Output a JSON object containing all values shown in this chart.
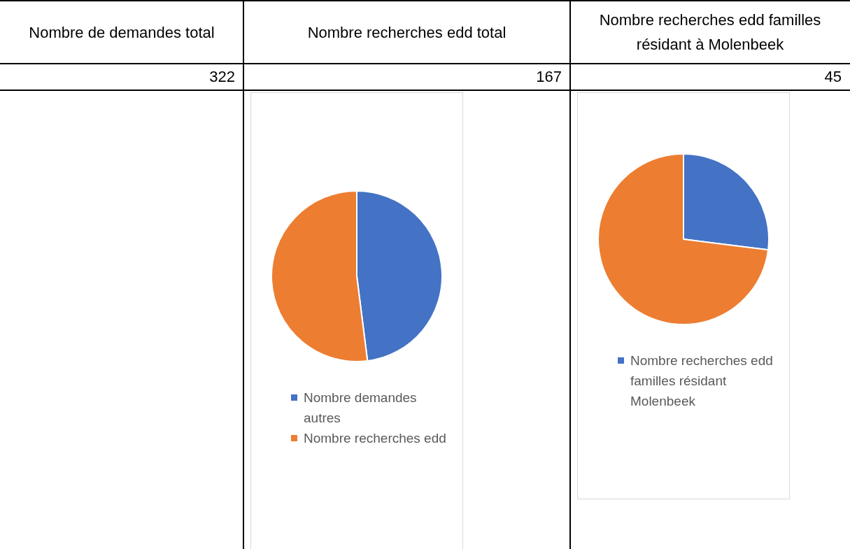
{
  "chart_data": [
    {
      "type": "other",
      "title": "Nombre de demandes total",
      "annotations": [
        "322"
      ]
    },
    {
      "type": "pie",
      "title": "Nombre recherches edd total",
      "annotations": [
        "167"
      ],
      "categories": [
        "Nombre demandes autres",
        "Nombre recherches edd"
      ],
      "values": [
        48,
        52
      ],
      "colors": [
        "#4472c4",
        "#ed7d31"
      ],
      "legend": "bottom"
    },
    {
      "type": "pie",
      "title": "Nombre recherches edd familles résidant à Molenbeek",
      "annotations": [
        "45"
      ],
      "categories": [
        "Nombre recherches edd familles résidant Molenbeek",
        null
      ],
      "values": [
        27,
        73
      ],
      "colors": [
        "#4472c4",
        "#ed7d31"
      ],
      "legend": "bottom"
    }
  ]
}
